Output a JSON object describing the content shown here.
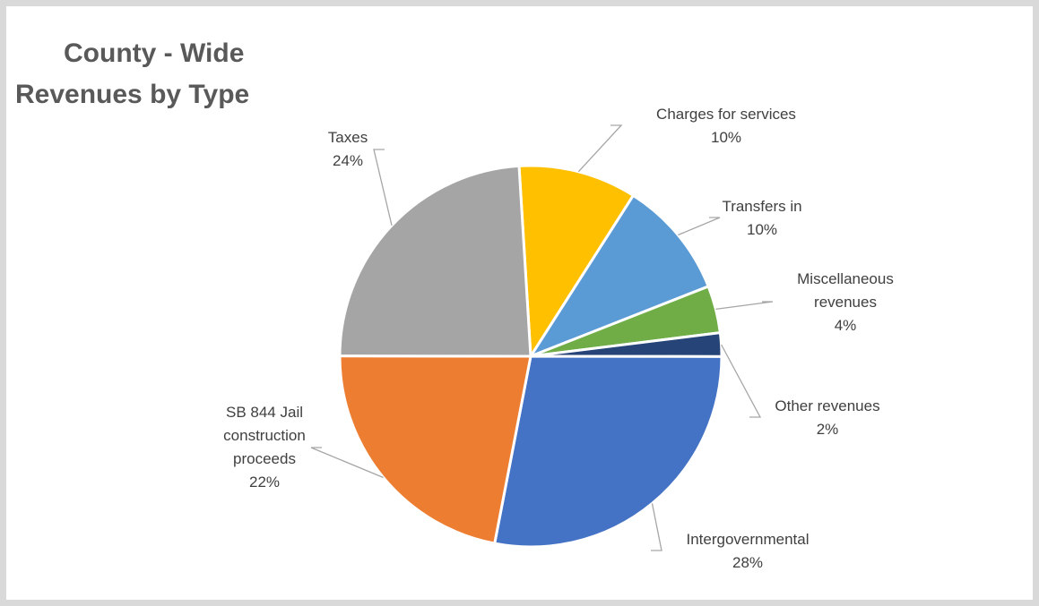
{
  "chart_data": {
    "type": "pie",
    "title_line1": "County - Wide",
    "title_line2": "Revenues by Type",
    "slices": [
      {
        "name": "Charges for services",
        "value": 10,
        "percent_label": "10%",
        "color": "#ffc000",
        "label_lines": [
          "Charges for services",
          "10%"
        ]
      },
      {
        "name": "Transfers in",
        "value": 10,
        "percent_label": "10%",
        "color": "#5b9bd5",
        "label_lines": [
          "Transfers in",
          "10%"
        ]
      },
      {
        "name": "Miscellaneous revenues",
        "value": 4,
        "percent_label": "4%",
        "color": "#70ad47",
        "label_lines": [
          "Miscellaneous",
          "revenues",
          "4%"
        ]
      },
      {
        "name": "Other revenues",
        "value": 2,
        "percent_label": "2%",
        "color": "#264478",
        "label_lines": [
          "Other revenues",
          "2%"
        ]
      },
      {
        "name": "Intergovernmental",
        "value": 28,
        "percent_label": "28%",
        "color": "#4472c4",
        "label_lines": [
          "Intergovernmental",
          "28%"
        ]
      },
      {
        "name": "SB 844 Jail construction proceeds",
        "value": 22,
        "percent_label": "22%",
        "color": "#ed7d31",
        "label_lines": [
          "SB 844 Jail",
          "construction",
          "proceeds",
          "22%"
        ]
      },
      {
        "name": "Taxes",
        "value": 24,
        "percent_label": "24%",
        "color": "#a5a5a5",
        "label_lines": [
          "Taxes",
          "24%"
        ]
      }
    ],
    "legend": "none",
    "data_labels": "outside-with-leader-lines"
  }
}
